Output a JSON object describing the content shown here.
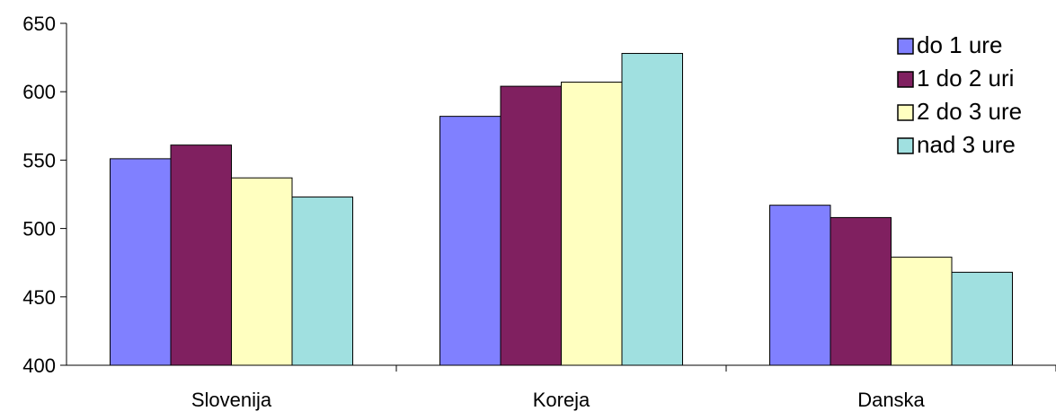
{
  "chart_data": {
    "type": "bar",
    "title": "",
    "xlabel": "",
    "ylabel": "",
    "categories": [
      "Slovenija",
      "Koreja",
      "Danska"
    ],
    "ylim": [
      400,
      650
    ],
    "yticks": [
      400,
      450,
      500,
      550,
      600,
      650
    ],
    "grid": false,
    "legend_position": "top-right",
    "series": [
      {
        "name": "do 1 ure",
        "values": [
          551,
          582,
          517
        ],
        "color": "#8080ff"
      },
      {
        "name": "1 do 2 uri",
        "values": [
          561,
          604,
          508
        ],
        "color": "#802060"
      },
      {
        "name": "2 do 3 ure",
        "values": [
          537,
          607,
          479
        ],
        "color": "#ffffc0"
      },
      {
        "name": "nad 3 ure",
        "values": [
          523,
          628,
          468
        ],
        "color": "#a0e0e0"
      }
    ]
  }
}
